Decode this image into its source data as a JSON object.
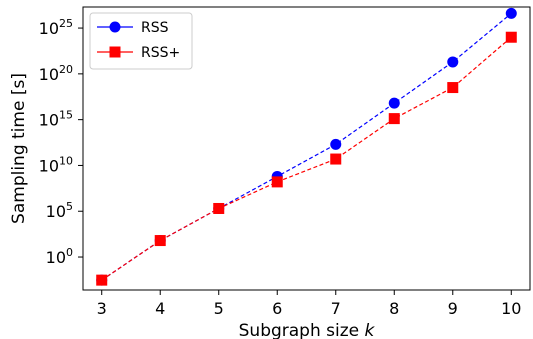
{
  "chart_data": {
    "type": "line",
    "xlabel_prefix": "Subgraph size ",
    "xlabel_var": "k",
    "ylabel": "Sampling time [s]",
    "x": [
      3,
      4,
      5,
      6,
      7,
      8,
      9,
      10
    ],
    "xlim": [
      2.68,
      10.32
    ],
    "y_scale": "log",
    "ylim_log10": [
      -3.6,
      27.3
    ],
    "y_ticks": [
      {
        "base": "10",
        "exp": "0",
        "value": 1
      },
      {
        "base": "10",
        "exp": "5",
        "value": 100000
      },
      {
        "base": "10",
        "exp": "10",
        "value": 10000000000.0
      },
      {
        "base": "10",
        "exp": "15",
        "value": 1000000000000000.0
      },
      {
        "base": "10",
        "exp": "20",
        "value": 1e+20
      },
      {
        "base": "10",
        "exp": "25",
        "value": 1e+25
      }
    ],
    "legend_position": "top-left",
    "grid": false,
    "series": [
      {
        "name": "RSS",
        "color": "#0000ff",
        "marker": "circle",
        "line_style": "dashed",
        "values": [
          0.003,
          63,
          200000,
          630000000.0,
          2000000000000.0,
          6.3e+16,
          2e+21,
          4e+26
        ]
      },
      {
        "name": "RSS+",
        "color": "#ff0000",
        "marker": "square",
        "line_style": "dashed",
        "values": [
          0.003,
          63,
          200000,
          160000000.0,
          50000000000.0,
          1300000000000000.0,
          3.2e+18,
          1e+24
        ]
      }
    ]
  }
}
